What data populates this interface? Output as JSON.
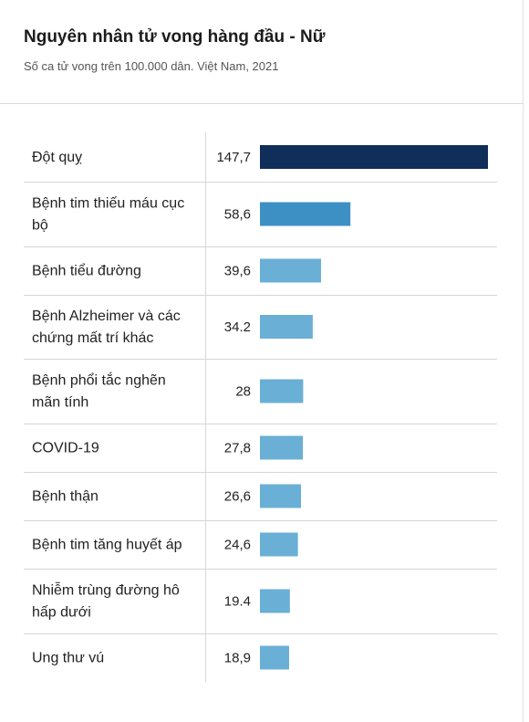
{
  "header": {
    "title": "Nguyên nhân tử vong hàng đầu - Nữ",
    "subtitle": "Số ca tử vong trên 100.000 dân. Việt Nam, 2021"
  },
  "colors": {
    "top_bar": "#0f2e5a",
    "second_bar": "#3d90c4",
    "other_bars": "#6aafd6",
    "divider": "#d6d6d6"
  },
  "chart_data": {
    "type": "bar",
    "orientation": "horizontal",
    "title": "Nguyên nhân tử vong hàng đầu - Nữ",
    "subtitle": "Số ca tử vong trên 100.000 dân. Việt Nam, 2021",
    "categories": [
      [
        "Đột quỵ"
      ],
      [
        "Bệnh tim thiếu máu cục",
        "bộ"
      ],
      [
        "Bệnh tiểu đường"
      ],
      [
        "Bệnh Alzheimer và các",
        "chứng mất trí khác"
      ],
      [
        "Bệnh phổi tắc nghẽn",
        "mãn tính"
      ],
      [
        "COVID-19"
      ],
      [
        "Bệnh thận"
      ],
      [
        "Bệnh tim tăng huyết áp"
      ],
      [
        "Nhiễm trùng đường hô",
        "hấp dưới"
      ],
      [
        "Ung thư vú"
      ]
    ],
    "values": [
      147.7,
      58.6,
      39.6,
      34.2,
      28,
      27.8,
      26.6,
      24.6,
      19.4,
      18.9
    ],
    "value_labels": [
      "147,7",
      "58,6",
      "39,6",
      "34.2",
      "28",
      "27,8",
      "26,6",
      "24,6",
      "19.4",
      "18,9"
    ],
    "xlim": [
      0,
      147.7
    ]
  }
}
